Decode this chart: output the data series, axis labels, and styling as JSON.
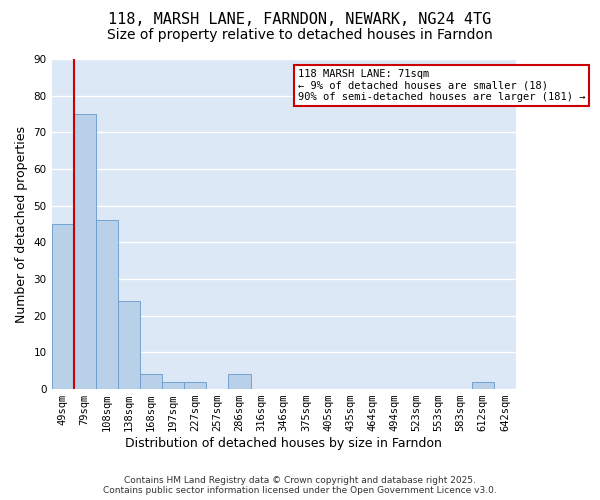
{
  "title": "118, MARSH LANE, FARNDON, NEWARK, NG24 4TG",
  "subtitle": "Size of property relative to detached houses in Farndon",
  "xlabel": "Distribution of detached houses by size in Farndon",
  "ylabel": "Number of detached properties",
  "categories": [
    "49sqm",
    "79sqm",
    "108sqm",
    "138sqm",
    "168sqm",
    "197sqm",
    "227sqm",
    "257sqm",
    "286sqm",
    "316sqm",
    "346sqm",
    "375sqm",
    "405sqm",
    "435sqm",
    "464sqm",
    "494sqm",
    "523sqm",
    "553sqm",
    "583sqm",
    "612sqm",
    "642sqm"
  ],
  "values": [
    45,
    75,
    46,
    24,
    4,
    2,
    2,
    0,
    4,
    0,
    0,
    0,
    0,
    0,
    0,
    0,
    0,
    0,
    0,
    2,
    0
  ],
  "bar_color": "#b8d0e8",
  "bar_edge_color": "#6699cc",
  "bar_edge_width": 0.6,
  "bg_color": "#dce8f5",
  "grid_color": "#ffffff",
  "vline_color": "#cc0000",
  "annotation_line1": "118 MARSH LANE: 71sqm",
  "annotation_line2": "← 9% of detached houses are smaller (18)",
  "annotation_line3": "90% of semi-detached houses are larger (181) →",
  "annotation_box_color": "#ffffff",
  "annotation_box_edge": "#cc0000",
  "ylim": [
    0,
    90
  ],
  "yticks": [
    0,
    10,
    20,
    30,
    40,
    50,
    60,
    70,
    80,
    90
  ],
  "title_fontsize": 11,
  "subtitle_fontsize": 10,
  "axis_label_fontsize": 9,
  "tick_fontsize": 7.5,
  "annotation_fontsize": 7.5,
  "footer_fontsize": 6.5
}
